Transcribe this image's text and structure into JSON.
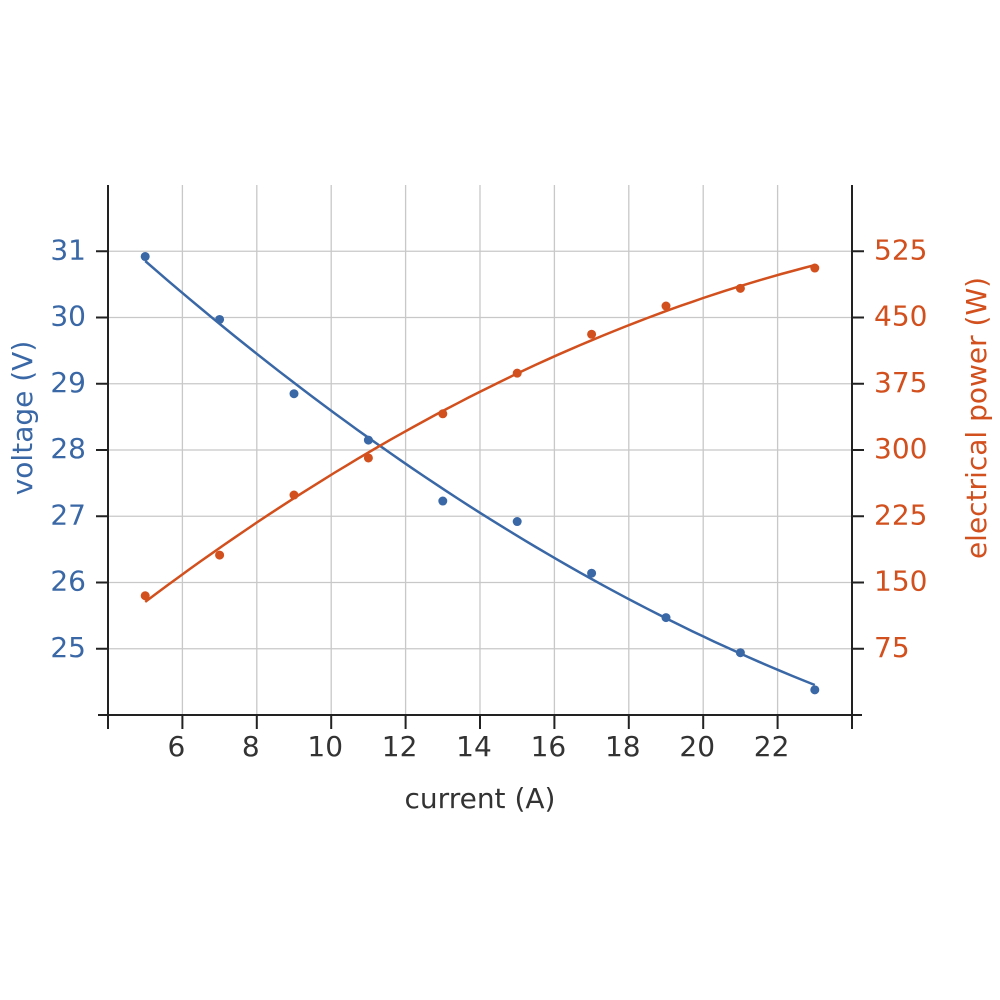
{
  "chart_data": {
    "type": "scatter",
    "x_label": "current (A)",
    "y_label": "voltage (V)",
    "y2_label": "electrical power (W)",
    "x": [
      5,
      7,
      9,
      11,
      13,
      15,
      17,
      19,
      21,
      23
    ],
    "series": [
      {
        "name": "voltage",
        "color": "#3a68a6",
        "values": [
          30.92,
          29.97,
          28.85,
          28.15,
          27.23,
          26.92,
          26.14,
          25.47,
          24.94,
          24.38
        ]
      },
      {
        "name": "electrical power",
        "color": "#d2501e",
        "axis": "y2",
        "values": [
          135,
          181,
          249,
          291,
          341,
          387,
          431,
          463,
          483,
          506
        ]
      }
    ],
    "xlim": [
      4,
      24
    ],
    "xticks": [
      6,
      8,
      10,
      12,
      14,
      16,
      18,
      20,
      22
    ],
    "ylim": [
      24,
      32
    ],
    "yticks": [
      25,
      26,
      27,
      28,
      29,
      30,
      31
    ],
    "y2lim": [
      0,
      600
    ],
    "y2ticks": [
      75,
      150,
      225,
      300,
      375,
      450,
      525
    ],
    "grid": true
  }
}
